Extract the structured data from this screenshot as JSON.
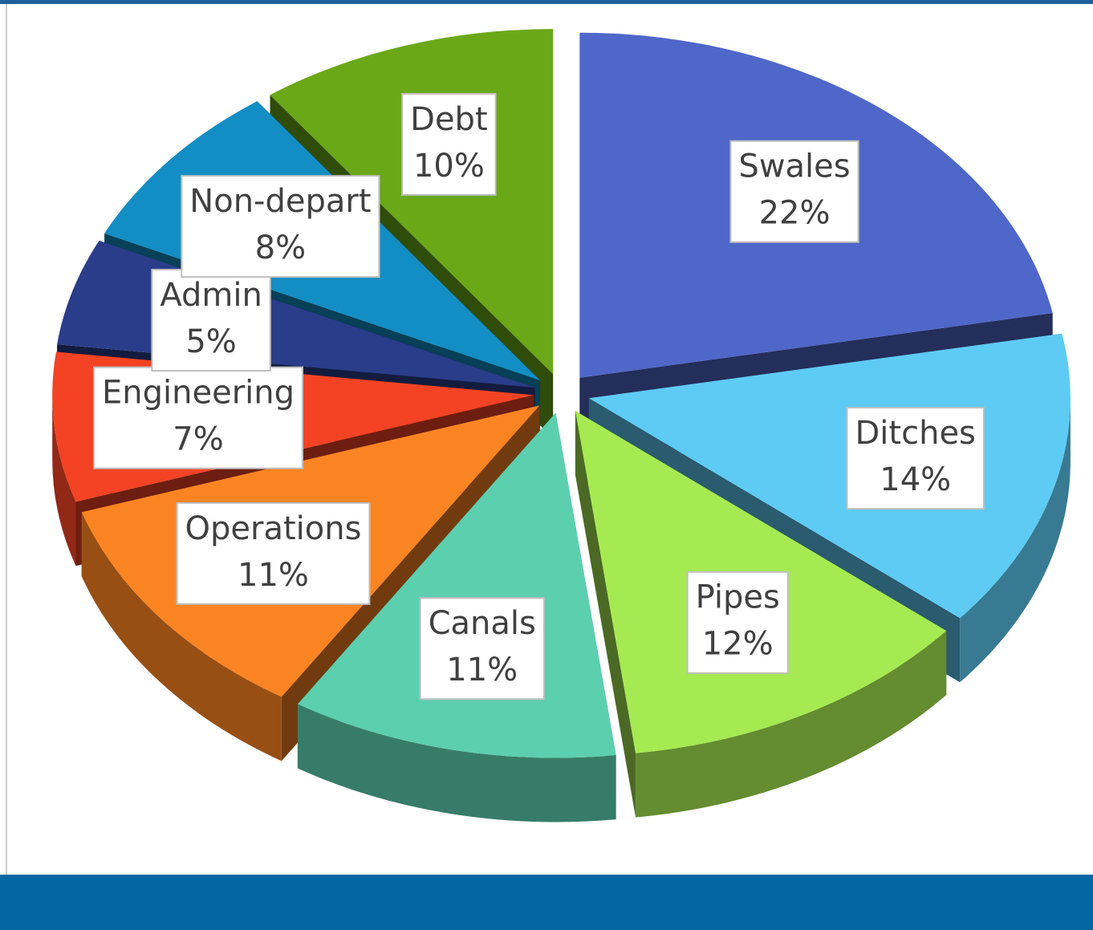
{
  "chart_data": {
    "type": "pie",
    "categories": [
      "Swales",
      "Ditches",
      "Pipes",
      "Canals",
      "Operations",
      "Engineering",
      "Admin",
      "Non-depart",
      "Debt"
    ],
    "values": [
      22,
      14,
      12,
      11,
      11,
      7,
      5,
      8,
      10
    ],
    "value_labels": [
      "22%",
      "14%",
      "12%",
      "11%",
      "11%",
      "7%",
      "5%",
      "8%",
      "10%"
    ],
    "colors": [
      "#4f67c9",
      "#5ecbf4",
      "#a6ea52",
      "#5ccfaf",
      "#fb8422",
      "#f34324",
      "#2a3d8a",
      "#128ec4",
      "#6aa818"
    ]
  }
}
